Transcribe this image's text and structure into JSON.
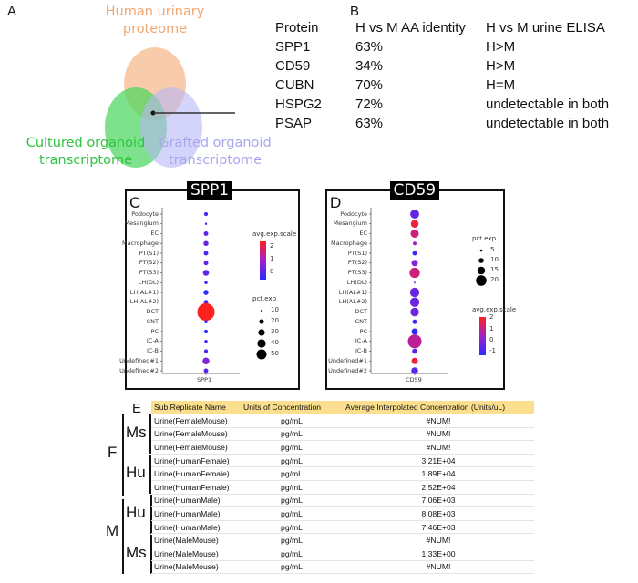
{
  "panel_a": {
    "label": "A",
    "venn": {
      "human": "Human urinary proteome",
      "human_l1": "Human urinary",
      "human_l2": "proteome",
      "cultured_l1": "Cultured organoid",
      "cultured_l2": "transcriptome",
      "grafted_l1": "Grafted organoid",
      "grafted_l2": "transcriptome",
      "colors": {
        "human": "#f5b98f",
        "cultured": "#46d65a",
        "grafted": "#b7b7f7",
        "human_text": "#f2a772",
        "cultured_text": "#2ec43f",
        "grafted_text": "#a7a7ee"
      }
    }
  },
  "panel_b": {
    "label": "B",
    "headers": [
      "Protein",
      "H vs M AA identity",
      "H vs M urine ELISA"
    ],
    "rows": [
      [
        "SPP1",
        "63%",
        "H>M"
      ],
      [
        "CD59",
        "34%",
        "H>M"
      ],
      [
        "CUBN",
        "70%",
        "H=M"
      ],
      [
        "HSPG2",
        "72%",
        "undetectable in both"
      ],
      [
        "PSAP",
        "63%",
        "undetectable in both"
      ]
    ]
  },
  "chart_data": [
    {
      "type": "scatter",
      "subtype": "dotplot",
      "panel": "C",
      "title": "SPP1",
      "xlabel": "SPP1",
      "categories": [
        "Podocyte",
        "Mesangium",
        "EC",
        "Macrophage",
        "PT(S1)",
        "PT(S2)",
        "PT(S3)",
        "LH(DL)",
        "LH(AL#1)",
        "LH(AL#2)",
        "DCT",
        "CNT",
        "PC",
        "IC-A",
        "IC-B",
        "Undefined#1",
        "Undefined#2"
      ],
      "pct_exp": [
        3,
        1,
        4,
        5,
        4,
        4,
        7,
        2,
        5,
        4,
        60,
        2,
        3,
        2,
        3,
        9,
        4
      ],
      "avg_exp_scale": [
        -0.2,
        -0.4,
        0,
        0.2,
        -0.3,
        0.1,
        0,
        -0.3,
        -0.6,
        -0.2,
        2.4,
        -0.5,
        -0.9,
        -0.4,
        -0.2,
        0.5,
        0
      ],
      "color_legend": {
        "title": "avg.exp.scale",
        "ticks": [
          "2",
          "1",
          "0"
        ],
        "range": [
          -0.6,
          2.4
        ]
      },
      "size_legend": {
        "title": "pct.exp",
        "ticks": [
          "10",
          "20",
          "30",
          "40",
          "50"
        ]
      },
      "size_k": 1.3
    },
    {
      "type": "scatter",
      "subtype": "dotplot",
      "panel": "D",
      "title": "CD59",
      "xlabel": "CD59",
      "categories": [
        "Podocyte",
        "Mesangium",
        "EC",
        "Macrophage",
        "PT(S1)",
        "PT(S2)",
        "PT(S3)",
        "LH(DL)",
        "LH(AL#1)",
        "LH(AL#2)",
        "DCT",
        "CNT",
        "PC",
        "IC-A",
        "IC-B",
        "Undefined#1",
        "Undefined#2"
      ],
      "pct_exp": [
        12,
        9,
        10,
        2,
        3,
        6,
        16,
        0.5,
        13,
        13,
        11,
        3,
        6,
        28,
        4,
        6,
        7
      ],
      "avg_exp_scale": [
        -0.5,
        1.8,
        1.2,
        0.5,
        -1.2,
        0,
        1.2,
        0,
        -0.4,
        -0.4,
        -0.3,
        -1.2,
        -1.2,
        0.9,
        -0.6,
        1.8,
        -0.6
      ],
      "color_legend": {
        "title": "avg.exp.scale",
        "ticks": [
          "2",
          "1",
          "0",
          "-1"
        ],
        "range": [
          -1.3,
          2.1
        ]
      },
      "size_legend": {
        "title": "pct.exp",
        "ticks": [
          "5",
          "10",
          "15",
          "20"
        ]
      },
      "size_k": 1.42
    }
  ],
  "panel_e": {
    "label": "E",
    "headers": [
      "Sub Replicate Name",
      "Units of Concentration",
      "Average Interpolated Concentration (Units/uL)"
    ],
    "rows": [
      [
        "Urine(FemaleMouse)",
        "pg/mL",
        "#NUM!"
      ],
      [
        "Urine(FemaleMouse)",
        "pg/mL",
        "#NUM!"
      ],
      [
        "Urine(FemaleMouse)",
        "pg/mL",
        "#NUM!"
      ],
      [
        "Urine(HumanFemale)",
        "pg/mL",
        "3.21E+04"
      ],
      [
        "Urine(HumanFemale)",
        "pg/mL",
        "1.89E+04"
      ],
      [
        "Urine(HumanFemale)",
        "pg/mL",
        "2.52E+04"
      ],
      [
        "Urine(HumanMale)",
        "pg/mL",
        "7.06E+03"
      ],
      [
        "Urine(HumanMale)",
        "pg/mL",
        "8.08E+03"
      ],
      [
        "Urine(HumanMale)",
        "pg/mL",
        "7.46E+03"
      ],
      [
        "Urine(MaleMouse)",
        "pg/mL",
        "#NUM!"
      ],
      [
        "Urine(MaleMouse)",
        "pg/mL",
        "1.33E+00"
      ],
      [
        "Urine(MaleMouse)",
        "pg/mL",
        "#NUM!"
      ]
    ],
    "groups": {
      "female": "F",
      "male": "M",
      "ms": "Ms",
      "hu": "Hu"
    }
  }
}
